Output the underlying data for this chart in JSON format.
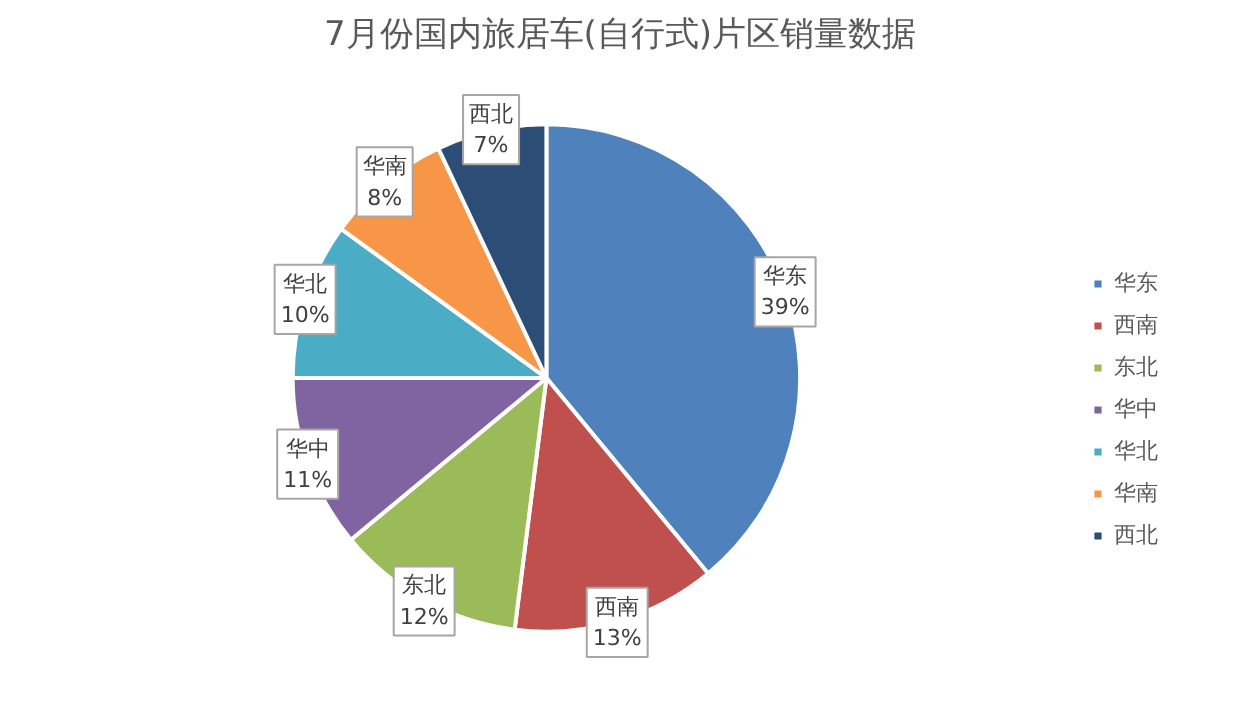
{
  "chart_data": {
    "type": "pie",
    "title": "7月份国内旅居车(自行式)片区销量数据",
    "categories": [
      "华东",
      "西南",
      "东北",
      "华中",
      "华北",
      "华南",
      "西北"
    ],
    "values": [
      39,
      13,
      12,
      11,
      10,
      8,
      7
    ],
    "colors": [
      "#4f81bd",
      "#c0504d",
      "#9bbb59",
      "#8064a2",
      "#4bacc6",
      "#f79646",
      "#2c4d75"
    ],
    "value_labels": [
      "39%",
      "13%",
      "12%",
      "11%",
      "10%",
      "8%",
      "7%"
    ],
    "legend": "right"
  }
}
